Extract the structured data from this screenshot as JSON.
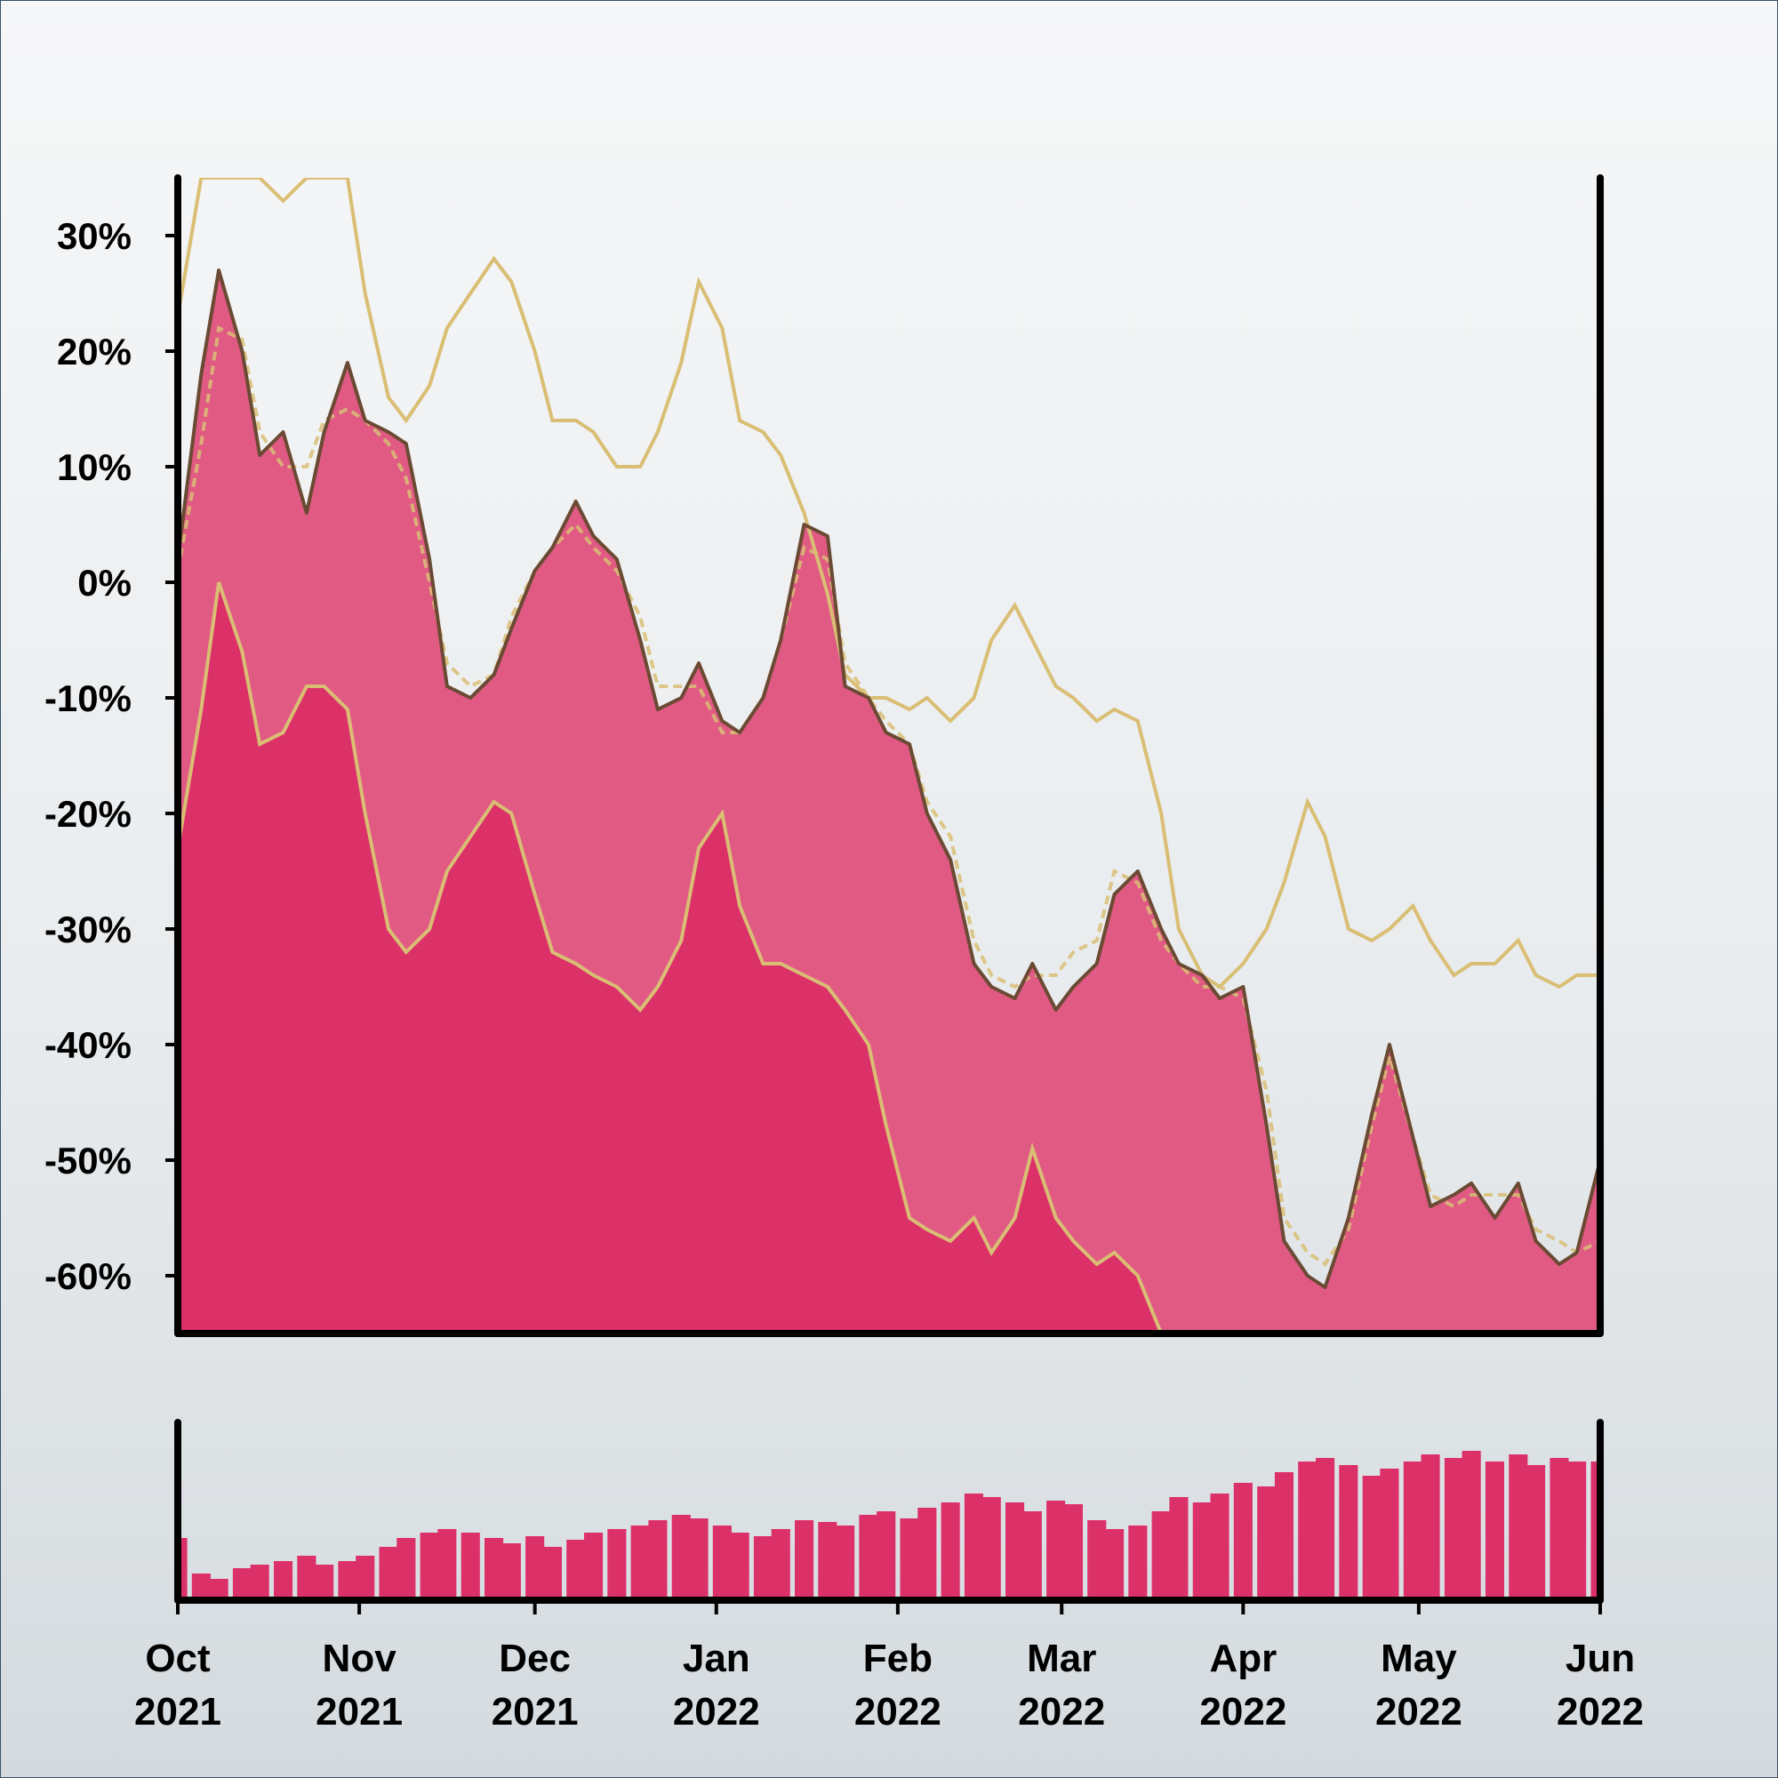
{
  "chart_data": [
    {
      "type": "area",
      "panel": "price",
      "yaxis": {
        "ticks": [
          30,
          20,
          10,
          0,
          -10,
          -20,
          -30,
          -40,
          -50,
          -60
        ],
        "tick_labels": [
          "30%",
          "20%",
          "10%",
          "0%",
          "-10%",
          "-20%",
          "-30%",
          "-40%",
          "-50%",
          "-60%"
        ],
        "ylim": [
          -65,
          35
        ]
      },
      "xaxis": {
        "type": "date",
        "range": [
          "2021-10-01",
          "2022-06-01"
        ],
        "ticks": [
          "2021-10-01",
          "2021-11-01",
          "2021-12-01",
          "2022-01-01",
          "2022-02-01",
          "2022-03-01",
          "2022-04-01",
          "2022-05-01",
          "2022-06-01"
        ],
        "tick_labels": [
          [
            "Oct",
            "2021"
          ],
          [
            "Nov",
            "2021"
          ],
          [
            "Dec",
            "2021"
          ],
          [
            "Jan",
            "2022"
          ],
          [
            "Feb",
            "2022"
          ],
          [
            "Mar",
            "2022"
          ],
          [
            "Apr",
            "2022"
          ],
          [
            "May",
            "2022"
          ],
          [
            "Jun",
            "2022"
          ]
        ]
      },
      "grid": false,
      "series": [
        {
          "role": "close",
          "dates": [
            "2021-10-01",
            "2021-10-05",
            "2021-10-08",
            "2021-10-12",
            "2021-10-15",
            "2021-10-19",
            "2021-10-23",
            "2021-10-26",
            "2021-10-30",
            "2021-11-02",
            "2021-11-06",
            "2021-11-09",
            "2021-11-13",
            "2021-11-16",
            "2021-11-20",
            "2021-11-24",
            "2021-11-27",
            "2021-12-01",
            "2021-12-04",
            "2021-12-08",
            "2021-12-11",
            "2021-12-15",
            "2021-12-19",
            "2021-12-22",
            "2021-12-26",
            "2021-12-29",
            "2022-01-02",
            "2022-01-05",
            "2022-01-09",
            "2022-01-12",
            "2022-01-16",
            "2022-01-20",
            "2022-01-23",
            "2022-01-27",
            "2022-01-30",
            "2022-02-03",
            "2022-02-06",
            "2022-02-10",
            "2022-02-14",
            "2022-02-17",
            "2022-02-21",
            "2022-02-24",
            "2022-02-28",
            "2022-03-03",
            "2022-03-07",
            "2022-03-10",
            "2022-03-14",
            "2022-03-18",
            "2022-03-21",
            "2022-03-25",
            "2022-03-28",
            "2022-04-01",
            "2022-04-05",
            "2022-04-08",
            "2022-04-12",
            "2022-04-15",
            "2022-04-19",
            "2022-04-23",
            "2022-04-26",
            "2022-04-30",
            "2022-05-03",
            "2022-05-07",
            "2022-05-10",
            "2022-05-14",
            "2022-05-18",
            "2022-05-21",
            "2022-05-25",
            "2022-05-28",
            "2022-06-01"
          ],
          "values": [
            2,
            18,
            27,
            20,
            11,
            13,
            6,
            13,
            19,
            14,
            13,
            12,
            2,
            -9,
            -10,
            -8,
            -4,
            1,
            3,
            7,
            4,
            2,
            -5,
            -11,
            -10,
            -7,
            -12,
            -13,
            -10,
            -5,
            5,
            4,
            -9,
            -10,
            -13,
            -14,
            -20,
            -24,
            -33,
            -35,
            -36,
            -33,
            -37,
            -35,
            -33,
            -27,
            -25,
            -30,
            -33,
            -34,
            -36,
            -35,
            -47,
            -57,
            -60,
            -61,
            -55,
            -46,
            -40,
            -48,
            -54,
            -53,
            -52,
            -55,
            -52,
            -57,
            -59,
            -58,
            -50
          ]
        },
        {
          "role": "moving-average",
          "style": "dashed",
          "values": [
            1,
            12,
            22,
            21,
            13,
            10,
            10,
            14,
            15,
            14,
            12,
            9,
            0,
            -7,
            -9,
            -8,
            -3,
            1,
            3,
            5,
            3,
            1,
            -3,
            -9,
            -9,
            -9,
            -13,
            -13,
            -10,
            -5,
            3,
            2,
            -7,
            -10,
            -12,
            -14,
            -19,
            -22,
            -31,
            -34,
            -35,
            -34,
            -34,
            -32,
            -31,
            -25,
            -26,
            -31,
            -33,
            -35,
            -35,
            -36,
            -44,
            -55,
            -58,
            -59,
            -56,
            -47,
            -41,
            -48,
            -53,
            -54,
            -53,
            -53,
            -53,
            -56,
            -57,
            -58,
            -57
          ]
        },
        {
          "role": "upper-band",
          "values": [
            23,
            35,
            35,
            35,
            35,
            33,
            35,
            35,
            35,
            25,
            16,
            14,
            17,
            22,
            25,
            28,
            26,
            20,
            14,
            14,
            13,
            10,
            10,
            13,
            19,
            26,
            22,
            14,
            13,
            11,
            6,
            -1,
            -8,
            -10,
            -10,
            -11,
            -10,
            -12,
            -10,
            -5,
            -2,
            -5,
            -9,
            -10,
            -12,
            -11,
            -12,
            -20,
            -30,
            -34,
            -35,
            -33,
            -30,
            -26,
            -19,
            -22,
            -30,
            -31,
            -30,
            -28,
            -31,
            -34,
            -33,
            -33,
            -31,
            -34,
            -35,
            -34,
            -34
          ]
        },
        {
          "role": "lower-band",
          "values": [
            -23,
            -11,
            0,
            -6,
            -14,
            -13,
            -9,
            -9,
            -11,
            -20,
            -30,
            -32,
            -30,
            -25,
            -22,
            -19,
            -20,
            -27,
            -32,
            -33,
            -34,
            -35,
            -37,
            -35,
            -31,
            -23,
            -20,
            -28,
            -33,
            -33,
            -34,
            -35,
            -37,
            -40,
            -47,
            -55,
            -56,
            -57,
            -55,
            -58,
            -55,
            -49,
            -55,
            -57,
            -59,
            -58,
            -60,
            -65,
            -66,
            -66,
            -66,
            -66,
            -66,
            -66,
            -66,
            -66,
            -66,
            -66,
            -65,
            -66,
            -66,
            -66,
            -66,
            -66,
            -66,
            -66,
            -66,
            -66,
            -66
          ]
        }
      ]
    },
    {
      "type": "bar",
      "panel": "volume",
      "xaxis": {
        "type": "date",
        "range": [
          "2021-10-01",
          "2022-06-01"
        ]
      },
      "yaxis": {
        "ticks": [],
        "ylim": [
          0,
          100
        ]
      },
      "series": [
        {
          "role": "volume",
          "dates": [
            "2021-10-01",
            "2021-10-05",
            "2021-10-08",
            "2021-10-12",
            "2021-10-15",
            "2021-10-19",
            "2021-10-23",
            "2021-10-26",
            "2021-10-30",
            "2021-11-02",
            "2021-11-06",
            "2021-11-09",
            "2021-11-13",
            "2021-11-16",
            "2021-11-20",
            "2021-11-24",
            "2021-11-27",
            "2021-12-01",
            "2021-12-04",
            "2021-12-08",
            "2021-12-11",
            "2021-12-15",
            "2021-12-19",
            "2021-12-22",
            "2021-12-26",
            "2021-12-29",
            "2022-01-02",
            "2022-01-05",
            "2022-01-09",
            "2022-01-12",
            "2022-01-16",
            "2022-01-20",
            "2022-01-23",
            "2022-01-27",
            "2022-01-30",
            "2022-02-03",
            "2022-02-06",
            "2022-02-10",
            "2022-02-14",
            "2022-02-17",
            "2022-02-21",
            "2022-02-24",
            "2022-02-28",
            "2022-03-03",
            "2022-03-07",
            "2022-03-10",
            "2022-03-14",
            "2022-03-18",
            "2022-03-21",
            "2022-03-25",
            "2022-03-28",
            "2022-04-01",
            "2022-04-05",
            "2022-04-08",
            "2022-04-12",
            "2022-04-15",
            "2022-04-19",
            "2022-04-23",
            "2022-04-26",
            "2022-04-30",
            "2022-05-03",
            "2022-05-07",
            "2022-05-10",
            "2022-05-14",
            "2022-05-18",
            "2022-05-21",
            "2022-05-25",
            "2022-05-28",
            "2022-06-01"
          ],
          "values": [
            35,
            15,
            12,
            18,
            20,
            22,
            25,
            20,
            22,
            25,
            30,
            35,
            38,
            40,
            38,
            35,
            32,
            36,
            30,
            34,
            38,
            40,
            42,
            45,
            48,
            46,
            42,
            38,
            36,
            40,
            45,
            44,
            42,
            48,
            50,
            46,
            52,
            55,
            60,
            58,
            55,
            50,
            56,
            54,
            45,
            40,
            42,
            50,
            58,
            55,
            60,
            66,
            64,
            72,
            78,
            80,
            76,
            70,
            74,
            78,
            82,
            80,
            84,
            78,
            82,
            76,
            80,
            78,
            78
          ]
        }
      ]
    }
  ],
  "colors": {
    "area_fill_outer": "#e05a84",
    "area_fill_inner": "#dc3069",
    "close_line": "#6b4a33",
    "band_line": "#d9be74",
    "volume_fill": "#dc3069",
    "axis": "#000000"
  }
}
